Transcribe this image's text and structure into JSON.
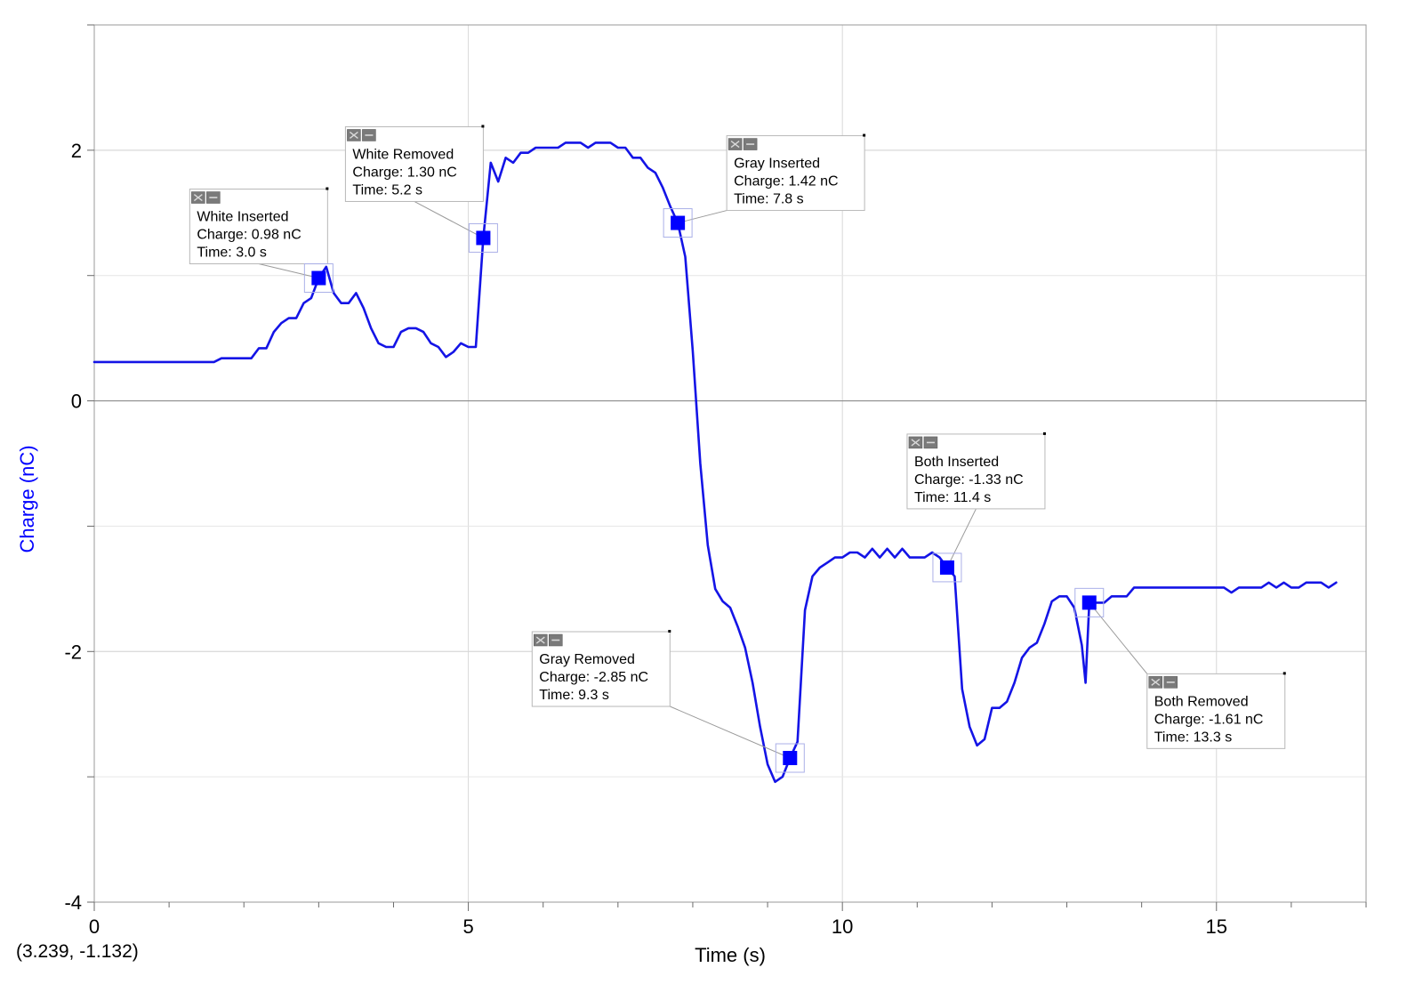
{
  "chart_data": {
    "type": "line",
    "xlabel": "Time (s)",
    "ylabel": "Charge (nC)",
    "xlim": [
      0,
      17
    ],
    "ylim": [
      -4,
      3
    ],
    "x_ticks": [
      0,
      5,
      10,
      15
    ],
    "y_ticks": [
      -4,
      -2,
      0,
      2
    ],
    "grid": true,
    "line_color": "#1414e6",
    "marker_color": "#0000ff",
    "cursor_readout": "(3.239, -1.132)",
    "series": [
      {
        "points": [
          [
            0.0,
            0.31
          ],
          [
            1.6,
            0.31
          ],
          [
            1.7,
            0.34
          ],
          [
            2.1,
            0.34
          ],
          [
            2.2,
            0.42
          ],
          [
            2.3,
            0.42
          ],
          [
            2.4,
            0.55
          ],
          [
            2.5,
            0.62
          ],
          [
            2.6,
            0.66
          ],
          [
            2.7,
            0.66
          ],
          [
            2.8,
            0.78
          ],
          [
            2.9,
            0.82
          ],
          [
            3.0,
            0.98
          ],
          [
            3.1,
            1.07
          ],
          [
            3.2,
            0.86
          ],
          [
            3.3,
            0.78
          ],
          [
            3.4,
            0.78
          ],
          [
            3.5,
            0.86
          ],
          [
            3.6,
            0.74
          ],
          [
            3.7,
            0.58
          ],
          [
            3.8,
            0.46
          ],
          [
            3.9,
            0.43
          ],
          [
            4.0,
            0.43
          ],
          [
            4.1,
            0.55
          ],
          [
            4.2,
            0.58
          ],
          [
            4.3,
            0.58
          ],
          [
            4.4,
            0.55
          ],
          [
            4.5,
            0.46
          ],
          [
            4.6,
            0.43
          ],
          [
            4.7,
            0.35
          ],
          [
            4.8,
            0.39
          ],
          [
            4.9,
            0.46
          ],
          [
            5.0,
            0.43
          ],
          [
            5.1,
            0.43
          ],
          [
            5.2,
            1.3
          ],
          [
            5.3,
            1.9
          ],
          [
            5.4,
            1.75
          ],
          [
            5.5,
            1.94
          ],
          [
            5.6,
            1.9
          ],
          [
            5.7,
            1.98
          ],
          [
            5.8,
            1.98
          ],
          [
            5.9,
            2.02
          ],
          [
            6.0,
            2.02
          ],
          [
            6.1,
            2.02
          ],
          [
            6.2,
            2.02
          ],
          [
            6.3,
            2.06
          ],
          [
            6.4,
            2.06
          ],
          [
            6.5,
            2.06
          ],
          [
            6.6,
            2.02
          ],
          [
            6.7,
            2.06
          ],
          [
            6.8,
            2.06
          ],
          [
            6.9,
            2.06
          ],
          [
            7.0,
            2.02
          ],
          [
            7.1,
            2.02
          ],
          [
            7.2,
            1.94
          ],
          [
            7.3,
            1.94
          ],
          [
            7.4,
            1.86
          ],
          [
            7.5,
            1.82
          ],
          [
            7.6,
            1.7
          ],
          [
            7.7,
            1.55
          ],
          [
            7.8,
            1.42
          ],
          [
            7.9,
            1.15
          ],
          [
            8.0,
            0.4
          ],
          [
            8.1,
            -0.5
          ],
          [
            8.2,
            -1.15
          ],
          [
            8.3,
            -1.5
          ],
          [
            8.4,
            -1.6
          ],
          [
            8.5,
            -1.65
          ],
          [
            8.6,
            -1.8
          ],
          [
            8.7,
            -1.97
          ],
          [
            8.8,
            -2.25
          ],
          [
            8.9,
            -2.6
          ],
          [
            9.0,
            -2.9
          ],
          [
            9.1,
            -3.04
          ],
          [
            9.2,
            -3.0
          ],
          [
            9.3,
            -2.85
          ],
          [
            9.4,
            -2.72
          ],
          [
            9.5,
            -1.67
          ],
          [
            9.6,
            -1.4
          ],
          [
            9.7,
            -1.33
          ],
          [
            9.8,
            -1.29
          ],
          [
            9.9,
            -1.25
          ],
          [
            10.0,
            -1.25
          ],
          [
            10.1,
            -1.21
          ],
          [
            10.2,
            -1.21
          ],
          [
            10.3,
            -1.25
          ],
          [
            10.4,
            -1.18
          ],
          [
            10.5,
            -1.25
          ],
          [
            10.6,
            -1.18
          ],
          [
            10.7,
            -1.25
          ],
          [
            10.8,
            -1.18
          ],
          [
            10.9,
            -1.25
          ],
          [
            11.0,
            -1.25
          ],
          [
            11.1,
            -1.25
          ],
          [
            11.2,
            -1.21
          ],
          [
            11.3,
            -1.25
          ],
          [
            11.4,
            -1.33
          ],
          [
            11.5,
            -1.4
          ],
          [
            11.6,
            -2.3
          ],
          [
            11.7,
            -2.6
          ],
          [
            11.8,
            -2.75
          ],
          [
            11.9,
            -2.7
          ],
          [
            12.0,
            -2.45
          ],
          [
            12.1,
            -2.45
          ],
          [
            12.2,
            -2.4
          ],
          [
            12.3,
            -2.25
          ],
          [
            12.4,
            -2.05
          ],
          [
            12.5,
            -1.97
          ],
          [
            12.6,
            -1.93
          ],
          [
            12.7,
            -1.78
          ],
          [
            12.8,
            -1.6
          ],
          [
            12.9,
            -1.56
          ],
          [
            13.0,
            -1.56
          ],
          [
            13.1,
            -1.65
          ],
          [
            13.2,
            -1.95
          ],
          [
            13.25,
            -2.25
          ],
          [
            13.3,
            -1.61
          ],
          [
            13.4,
            -1.61
          ],
          [
            13.5,
            -1.61
          ],
          [
            13.6,
            -1.56
          ],
          [
            13.7,
            -1.56
          ],
          [
            13.8,
            -1.56
          ],
          [
            13.9,
            -1.49
          ],
          [
            14.0,
            -1.49
          ],
          [
            14.5,
            -1.49
          ],
          [
            15.0,
            -1.49
          ],
          [
            15.1,
            -1.49
          ],
          [
            15.2,
            -1.53
          ],
          [
            15.3,
            -1.49
          ],
          [
            15.4,
            -1.49
          ],
          [
            15.5,
            -1.49
          ],
          [
            15.6,
            -1.49
          ],
          [
            15.7,
            -1.45
          ],
          [
            15.8,
            -1.49
          ],
          [
            15.9,
            -1.45
          ],
          [
            16.0,
            -1.49
          ],
          [
            16.1,
            -1.49
          ],
          [
            16.2,
            -1.45
          ],
          [
            16.3,
            -1.45
          ],
          [
            16.4,
            -1.45
          ],
          [
            16.5,
            -1.49
          ],
          [
            16.6,
            -1.45
          ]
        ]
      }
    ],
    "annotations": [
      {
        "title": "White Inserted",
        "charge": "Charge: 0.98 nC",
        "time": "Time: 3.0 s",
        "x": 3.0,
        "y": 0.98
      },
      {
        "title": "White Removed",
        "charge": "Charge: 1.30 nC",
        "time": "Time: 5.2 s",
        "x": 5.2,
        "y": 1.3
      },
      {
        "title": "Gray Inserted",
        "charge": "Charge: 1.42 nC",
        "time": "Time: 7.8 s",
        "x": 7.8,
        "y": 1.42
      },
      {
        "title": "Gray Removed",
        "charge": "Charge: -2.85 nC",
        "time": "Time: 9.3 s",
        "x": 9.3,
        "y": -2.85
      },
      {
        "title": "Both Inserted",
        "charge": "Charge: -1.33 nC",
        "time": "Time: 11.4 s",
        "x": 11.4,
        "y": -1.33
      },
      {
        "title": "Both Removed",
        "charge": "Charge: -1.61 nC",
        "time": "Time: 13.3 s",
        "x": 13.3,
        "y": -1.61
      }
    ]
  }
}
